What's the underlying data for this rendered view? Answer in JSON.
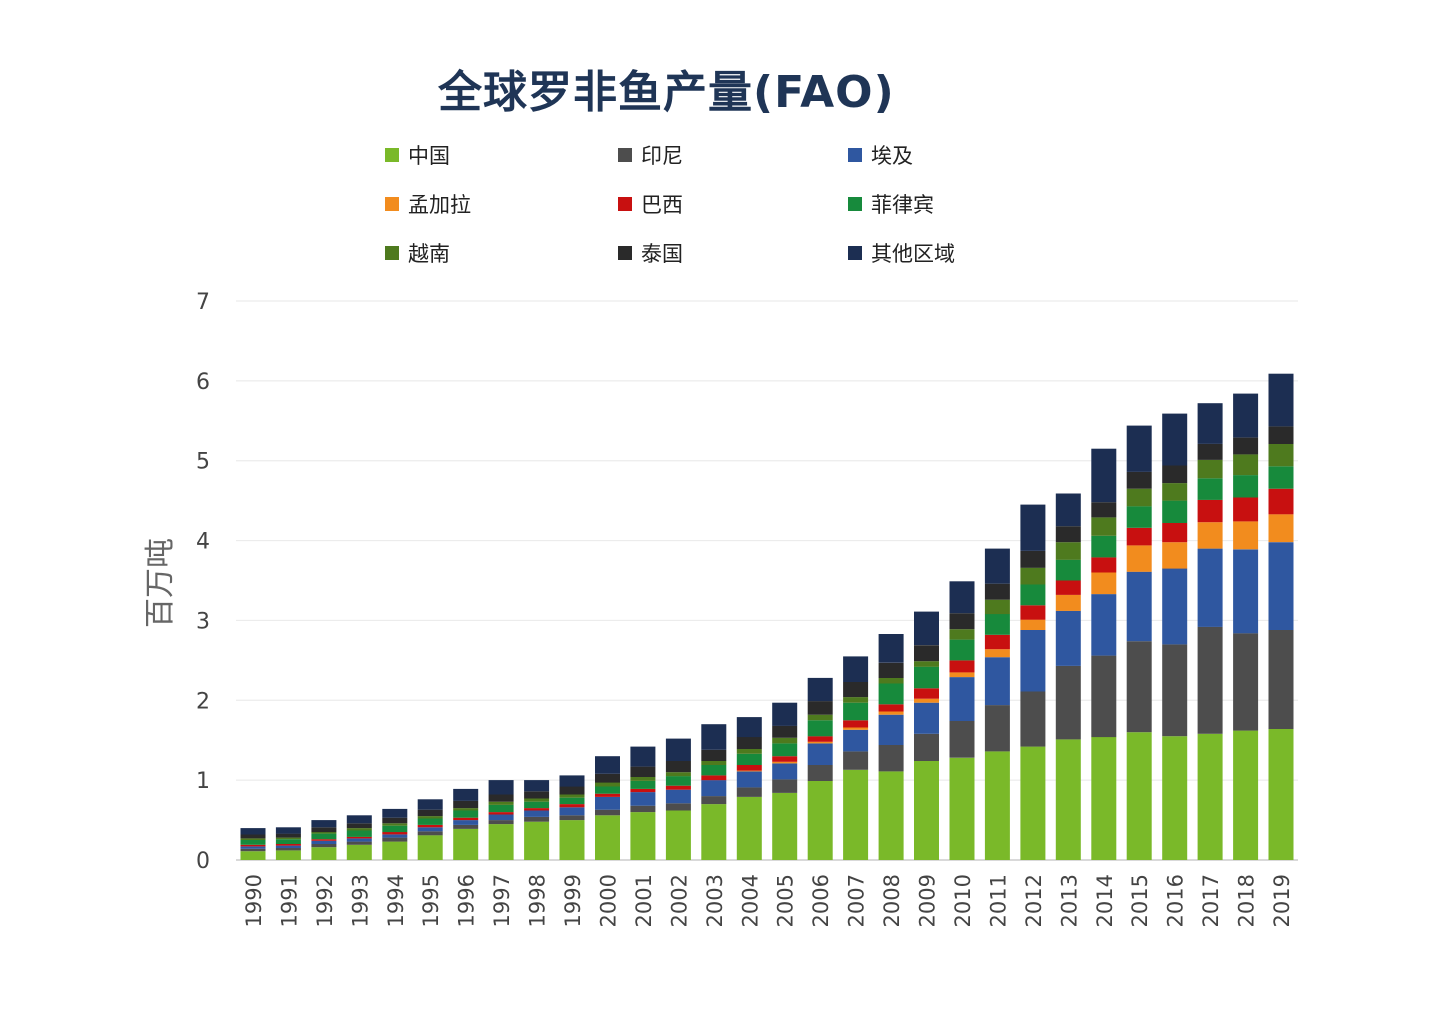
{
  "chart_data": {
    "type": "bar",
    "stacked": true,
    "title": "全球罗非鱼产量(FAO)",
    "xlabel": "",
    "ylabel": "百万吨",
    "ylim": [
      0,
      7
    ],
    "yticks": [
      "0",
      "1",
      "2",
      "3",
      "4",
      "5",
      "6",
      "7"
    ],
    "grid": true,
    "legend_position": "top",
    "categories": [
      "1990",
      "1991",
      "1992",
      "1993",
      "1994",
      "1995",
      "1996",
      "1997",
      "1998",
      "1999",
      "2000",
      "2001",
      "2002",
      "2003",
      "2004",
      "2005",
      "2006",
      "2007",
      "2008",
      "2009",
      "2010",
      "2011",
      "2012",
      "2013",
      "2014",
      "2015",
      "2016",
      "2017",
      "2018",
      "2019"
    ],
    "series": [
      {
        "name": "中国",
        "color": "#7ab929",
        "values": [
          0.11,
          0.12,
          0.16,
          0.19,
          0.23,
          0.31,
          0.39,
          0.45,
          0.48,
          0.5,
          0.56,
          0.6,
          0.62,
          0.7,
          0.79,
          0.84,
          0.99,
          1.13,
          1.11,
          1.24,
          1.28,
          1.36,
          1.42,
          1.51,
          1.54,
          1.6,
          1.55,
          1.58,
          1.62,
          1.64
        ]
      },
      {
        "name": "印尼",
        "color": "#4d4d4d",
        "values": [
          0.03,
          0.03,
          0.04,
          0.04,
          0.05,
          0.05,
          0.05,
          0.05,
          0.06,
          0.06,
          0.07,
          0.08,
          0.09,
          0.1,
          0.12,
          0.17,
          0.2,
          0.23,
          0.33,
          0.34,
          0.46,
          0.58,
          0.69,
          0.92,
          1.02,
          1.14,
          1.15,
          1.34,
          1.22,
          1.24
        ]
      },
      {
        "name": "埃及",
        "color": "#2f57a0",
        "values": [
          0.03,
          0.03,
          0.04,
          0.04,
          0.04,
          0.05,
          0.06,
          0.07,
          0.08,
          0.1,
          0.16,
          0.17,
          0.17,
          0.2,
          0.2,
          0.2,
          0.27,
          0.27,
          0.38,
          0.39,
          0.55,
          0.6,
          0.77,
          0.69,
          0.77,
          0.87,
          0.95,
          0.98,
          1.05,
          1.1
        ]
      },
      {
        "name": "孟加拉",
        "color": "#f28c1e",
        "values": [
          0.0,
          0.0,
          0.0,
          0.0,
          0.0,
          0.0,
          0.0,
          0.0,
          0.0,
          0.0,
          0.0,
          0.0,
          0.0,
          0.0,
          0.01,
          0.02,
          0.02,
          0.03,
          0.04,
          0.05,
          0.06,
          0.1,
          0.13,
          0.2,
          0.27,
          0.33,
          0.33,
          0.33,
          0.35,
          0.35
        ]
      },
      {
        "name": "巴西",
        "color": "#c81010",
        "values": [
          0.02,
          0.02,
          0.02,
          0.02,
          0.03,
          0.03,
          0.03,
          0.03,
          0.03,
          0.04,
          0.04,
          0.04,
          0.05,
          0.06,
          0.07,
          0.07,
          0.07,
          0.09,
          0.09,
          0.13,
          0.15,
          0.18,
          0.18,
          0.18,
          0.19,
          0.22,
          0.24,
          0.28,
          0.3,
          0.32
        ]
      },
      {
        "name": "菲律宾",
        "color": "#178a3c",
        "values": [
          0.06,
          0.06,
          0.07,
          0.08,
          0.08,
          0.08,
          0.09,
          0.09,
          0.08,
          0.08,
          0.09,
          0.1,
          0.12,
          0.13,
          0.14,
          0.16,
          0.2,
          0.22,
          0.26,
          0.27,
          0.26,
          0.26,
          0.26,
          0.26,
          0.27,
          0.27,
          0.28,
          0.27,
          0.28,
          0.28
        ]
      },
      {
        "name": "越南",
        "color": "#4e7a1e",
        "values": [
          0.02,
          0.02,
          0.02,
          0.03,
          0.03,
          0.03,
          0.03,
          0.04,
          0.04,
          0.04,
          0.05,
          0.05,
          0.05,
          0.05,
          0.06,
          0.07,
          0.07,
          0.07,
          0.07,
          0.07,
          0.13,
          0.18,
          0.21,
          0.22,
          0.23,
          0.22,
          0.22,
          0.23,
          0.26,
          0.28
        ]
      },
      {
        "name": "泰国",
        "color": "#2a2a2a",
        "values": [
          0.05,
          0.05,
          0.06,
          0.06,
          0.07,
          0.08,
          0.09,
          0.09,
          0.09,
          0.1,
          0.11,
          0.13,
          0.14,
          0.14,
          0.15,
          0.15,
          0.17,
          0.19,
          0.19,
          0.2,
          0.2,
          0.2,
          0.21,
          0.2,
          0.19,
          0.21,
          0.22,
          0.2,
          0.21,
          0.22
        ]
      },
      {
        "name": "其他区域",
        "color": "#1c2e52",
        "values": [
          0.08,
          0.08,
          0.09,
          0.1,
          0.11,
          0.13,
          0.15,
          0.18,
          0.14,
          0.14,
          0.22,
          0.25,
          0.28,
          0.32,
          0.25,
          0.29,
          0.29,
          0.32,
          0.36,
          0.42,
          0.4,
          0.44,
          0.58,
          0.41,
          0.67,
          0.58,
          0.65,
          0.51,
          0.55,
          0.66
        ]
      }
    ]
  }
}
